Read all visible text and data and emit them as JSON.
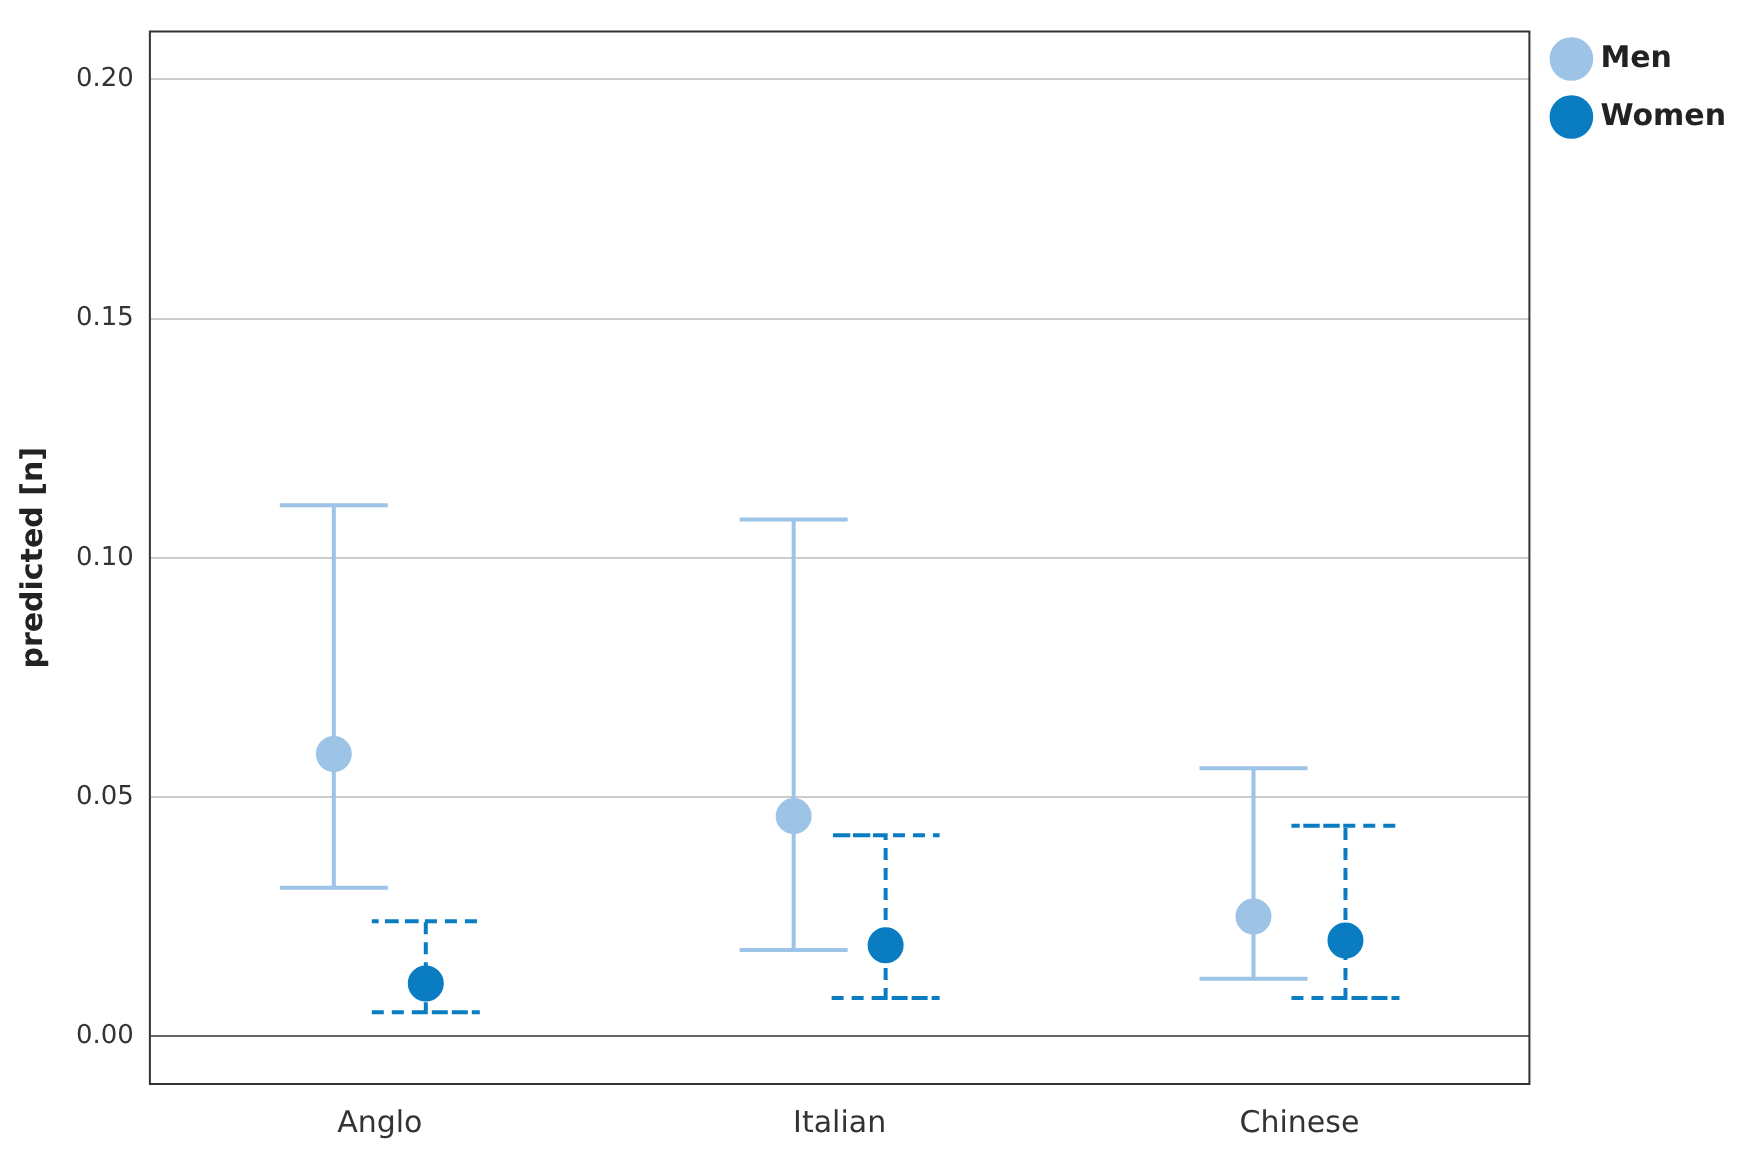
{
  "chart_data": {
    "type": "scatter",
    "ylabel": "predicted [n]",
    "categories": [
      "Anglo",
      "Italian",
      "Chinese"
    ],
    "series": [
      {
        "name": "Men",
        "color": "#9dc3e6",
        "values": [
          0.059,
          0.046,
          0.025
        ],
        "errors": [
          [
            0.031,
            0.111
          ],
          [
            0.018,
            0.108
          ],
          [
            0.012,
            0.056
          ]
        ],
        "line_style": "solid"
      },
      {
        "name": "Women",
        "color": "#0a7dc2",
        "values": [
          0.011,
          0.019,
          0.02
        ],
        "errors": [
          [
            0.005,
            0.024
          ],
          [
            0.008,
            0.042
          ],
          [
            0.008,
            0.044
          ]
        ],
        "line_style": "dashed"
      }
    ],
    "ylim": [
      -0.01,
      0.21
    ],
    "yticks": [
      {
        "value": 0,
        "label": "0.00"
      },
      {
        "value": 0.05,
        "label": "0.05"
      },
      {
        "value": 0.1,
        "label": "0.10"
      },
      {
        "value": 0.15,
        "label": "0.15"
      },
      {
        "value": 0.2,
        "label": "0.20"
      }
    ],
    "grid": "y",
    "legend": "top right",
    "marker": "circle"
  }
}
